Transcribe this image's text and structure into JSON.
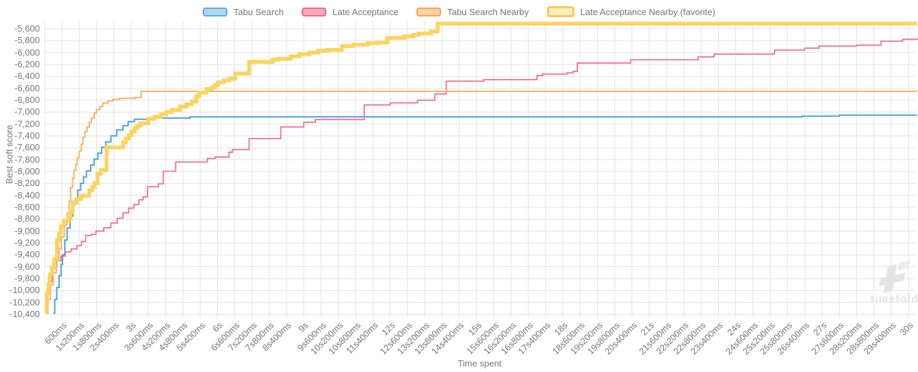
{
  "legend": {
    "items": [
      {
        "label": "Tabu Search",
        "fill": "#aed6f1",
        "border": "#5dade2",
        "thick": false
      },
      {
        "label": "Late Acceptance",
        "fill": "#f8a9be",
        "border": "#f1698c",
        "thick": false
      },
      {
        "label": "Tabu Search Nearby",
        "fill": "#fad2a0",
        "border": "#f5a55c",
        "thick": false
      },
      {
        "label": "Late Acceptance Nearby (favorite)",
        "fill": "#fcedc2",
        "border": "#f8cb4c",
        "thick": true
      }
    ]
  },
  "axes": {
    "y_title": "Best soft score",
    "x_title": "Time spent",
    "y_ticks": [
      "-5,600",
      "-5,800",
      "-6,000",
      "-6,200",
      "-6,400",
      "-6,600",
      "-6,800",
      "-7,000",
      "-7,200",
      "-7,400",
      "-7,600",
      "-7,800",
      "-8,000",
      "-8,200",
      "-8,400",
      "-8,600",
      "-8,800",
      "-9,000",
      "-9,200",
      "-9,400",
      "-9,600",
      "-9,800",
      "-10,000",
      "-10,200",
      "-10,400"
    ],
    "x_ticks": [
      "600ms",
      "1s200ms",
      "1s800ms",
      "2s400ms",
      "3s",
      "3s600ms",
      "4s200ms",
      "4s800ms",
      "5s400ms",
      "6s",
      "6s600ms",
      "7s200ms",
      "7s800ms",
      "8s400ms",
      "9s",
      "9s600ms",
      "10s200ms",
      "10s800ms",
      "11s400ms",
      "12s",
      "12s600ms",
      "13s200ms",
      "13s800ms",
      "14s400ms",
      "15s",
      "15s600ms",
      "16s200ms",
      "16s800ms",
      "17s400ms",
      "18s",
      "18s600ms",
      "19s200ms",
      "19s800ms",
      "20s400ms",
      "21s",
      "21s600ms",
      "22s200ms",
      "22s800ms",
      "23s400ms",
      "24s",
      "24s600ms",
      "25s200ms",
      "25s800ms",
      "26s400ms",
      "27s",
      "27s600ms",
      "28s200ms",
      "28s800ms",
      "29s400ms",
      "30s"
    ]
  },
  "watermark": {
    "text": "timefold"
  },
  "chart_data": {
    "type": "line",
    "subtype": "step-after",
    "title": "",
    "xlabel": "Time spent",
    "ylabel": "Best soft score",
    "x_unit_seconds_per_tick": 0.6,
    "x_range_seconds": [
      0,
      30
    ],
    "y_range": [
      -10400,
      -5600
    ],
    "grid": true,
    "legend_position": "top",
    "series": [
      {
        "name": "Tabu Search",
        "color": "#4aa3df",
        "width": 2,
        "points": [
          [
            0.3,
            -10380
          ],
          [
            0.35,
            -10150
          ],
          [
            0.42,
            -9950
          ],
          [
            0.5,
            -9750
          ],
          [
            0.57,
            -9560
          ],
          [
            0.62,
            -9400
          ],
          [
            0.7,
            -9150
          ],
          [
            0.78,
            -8950
          ],
          [
            0.88,
            -8750
          ],
          [
            0.98,
            -8550
          ],
          [
            1.07,
            -8450
          ],
          [
            1.15,
            -8310
          ],
          [
            1.25,
            -8200
          ],
          [
            1.35,
            -8090
          ],
          [
            1.45,
            -7990
          ],
          [
            1.6,
            -7890
          ],
          [
            1.72,
            -7790
          ],
          [
            1.85,
            -7690
          ],
          [
            1.98,
            -7590
          ],
          [
            2.12,
            -7500
          ],
          [
            2.3,
            -7400
          ],
          [
            2.5,
            -7300
          ],
          [
            2.72,
            -7230
          ],
          [
            2.9,
            -7160
          ],
          [
            3.12,
            -7120
          ],
          [
            3.7,
            -7100
          ],
          [
            5.05,
            -7080
          ],
          [
            26.3,
            -7068
          ],
          [
            27.6,
            -7052
          ],
          [
            30.3,
            -7052
          ]
        ]
      },
      {
        "name": "Late Acceptance",
        "color": "#f1718f",
        "width": 1.8,
        "points": [
          [
            0.05,
            -10380
          ],
          [
            0.1,
            -10000
          ],
          [
            0.17,
            -9850
          ],
          [
            0.27,
            -9620
          ],
          [
            0.42,
            -9500
          ],
          [
            0.57,
            -9420
          ],
          [
            0.72,
            -9350
          ],
          [
            0.92,
            -9300
          ],
          [
            1.12,
            -9245
          ],
          [
            1.28,
            -9175
          ],
          [
            1.42,
            -9075
          ],
          [
            1.62,
            -9055
          ],
          [
            1.78,
            -9000
          ],
          [
            2.05,
            -8945
          ],
          [
            2.3,
            -8865
          ],
          [
            2.52,
            -8785
          ],
          [
            2.72,
            -8695
          ],
          [
            2.92,
            -8615
          ],
          [
            3.1,
            -8555
          ],
          [
            3.27,
            -8475
          ],
          [
            3.42,
            -8425
          ],
          [
            3.57,
            -8255
          ],
          [
            3.95,
            -8205
          ],
          [
            4.12,
            -7995
          ],
          [
            4.55,
            -7840
          ],
          [
            5.65,
            -7780
          ],
          [
            5.92,
            -7755
          ],
          [
            6.4,
            -7675
          ],
          [
            6.52,
            -7630
          ],
          [
            7.1,
            -7445
          ],
          [
            8.2,
            -7250
          ],
          [
            9.0,
            -7170
          ],
          [
            9.4,
            -7125
          ],
          [
            11.1,
            -6880
          ],
          [
            12.0,
            -6845
          ],
          [
            12.95,
            -6800
          ],
          [
            13.55,
            -6695
          ],
          [
            13.95,
            -6480
          ],
          [
            15.25,
            -6455
          ],
          [
            17.1,
            -6385
          ],
          [
            17.3,
            -6360
          ],
          [
            18.15,
            -6340
          ],
          [
            18.35,
            -6315
          ],
          [
            18.5,
            -6175
          ],
          [
            20.35,
            -6120
          ],
          [
            22.7,
            -6072
          ],
          [
            23.25,
            -6025
          ],
          [
            25.35,
            -5958
          ],
          [
            26.4,
            -5925
          ],
          [
            26.9,
            -5890
          ],
          [
            28.2,
            -5875
          ],
          [
            29.05,
            -5808
          ],
          [
            29.8,
            -5775
          ],
          [
            30.3,
            -5772
          ]
        ]
      },
      {
        "name": "Tabu Search Nearby",
        "color": "#f7b267",
        "width": 2,
        "points": [
          [
            0.05,
            -10380
          ],
          [
            0.12,
            -10150
          ],
          [
            0.2,
            -9900
          ],
          [
            0.3,
            -9700
          ],
          [
            0.4,
            -9500
          ],
          [
            0.5,
            -9300
          ],
          [
            0.58,
            -9100
          ],
          [
            0.68,
            -8900
          ],
          [
            0.78,
            -8700
          ],
          [
            0.85,
            -8500
          ],
          [
            0.9,
            -8270
          ],
          [
            0.97,
            -8115
          ],
          [
            1.02,
            -7980
          ],
          [
            1.08,
            -7880
          ],
          [
            1.13,
            -7770
          ],
          [
            1.2,
            -7655
          ],
          [
            1.27,
            -7540
          ],
          [
            1.33,
            -7425
          ],
          [
            1.4,
            -7330
          ],
          [
            1.47,
            -7250
          ],
          [
            1.55,
            -7170
          ],
          [
            1.62,
            -7100
          ],
          [
            1.72,
            -7020
          ],
          [
            1.8,
            -6960
          ],
          [
            1.92,
            -6905
          ],
          [
            2.02,
            -6848
          ],
          [
            2.2,
            -6812
          ],
          [
            2.36,
            -6790
          ],
          [
            2.6,
            -6768
          ],
          [
            3.15,
            -6755
          ],
          [
            3.35,
            -6650
          ],
          [
            30.3,
            -6650
          ]
        ]
      },
      {
        "name": "Late Acceptance Nearby (favorite)",
        "color": "#fad45e",
        "width": 5.5,
        "points": [
          [
            0.02,
            -10350
          ],
          [
            0.08,
            -10050
          ],
          [
            0.13,
            -9900
          ],
          [
            0.18,
            -9730
          ],
          [
            0.25,
            -9615
          ],
          [
            0.33,
            -9475
          ],
          [
            0.43,
            -9155
          ],
          [
            0.5,
            -9040
          ],
          [
            0.56,
            -8920
          ],
          [
            0.66,
            -8830
          ],
          [
            0.82,
            -8790
          ],
          [
            0.9,
            -8690
          ],
          [
            0.97,
            -8520
          ],
          [
            1.12,
            -8460
          ],
          [
            1.27,
            -8405
          ],
          [
            1.55,
            -8310
          ],
          [
            1.65,
            -8255
          ],
          [
            1.73,
            -8195
          ],
          [
            1.84,
            -8035
          ],
          [
            1.95,
            -7975
          ],
          [
            2.15,
            -7595
          ],
          [
            2.72,
            -7505
          ],
          [
            2.82,
            -7445
          ],
          [
            2.92,
            -7390
          ],
          [
            3.02,
            -7330
          ],
          [
            3.12,
            -7270
          ],
          [
            3.22,
            -7228
          ],
          [
            3.32,
            -7190
          ],
          [
            3.6,
            -7112
          ],
          [
            3.82,
            -7078
          ],
          [
            4.02,
            -7042
          ],
          [
            4.22,
            -6998
          ],
          [
            4.42,
            -6962
          ],
          [
            4.7,
            -6905
          ],
          [
            4.92,
            -6868
          ],
          [
            5.12,
            -6822
          ],
          [
            5.27,
            -6732
          ],
          [
            5.37,
            -6672
          ],
          [
            5.62,
            -6612
          ],
          [
            5.82,
            -6580
          ],
          [
            5.92,
            -6545
          ],
          [
            6.02,
            -6500
          ],
          [
            6.22,
            -6465
          ],
          [
            6.42,
            -6440
          ],
          [
            6.62,
            -6350
          ],
          [
            7.1,
            -6155
          ],
          [
            7.92,
            -6118
          ],
          [
            8.12,
            -6105
          ],
          [
            8.55,
            -6062
          ],
          [
            8.85,
            -6027
          ],
          [
            9.2,
            -6002
          ],
          [
            9.5,
            -5968
          ],
          [
            9.82,
            -5955
          ],
          [
            10.32,
            -5890
          ],
          [
            10.72,
            -5865
          ],
          [
            11.22,
            -5842
          ],
          [
            11.55,
            -5830
          ],
          [
            11.9,
            -5752
          ],
          [
            12.5,
            -5727
          ],
          [
            12.8,
            -5702
          ],
          [
            13.0,
            -5680
          ],
          [
            13.42,
            -5645
          ],
          [
            13.65,
            -5512
          ],
          [
            30.3,
            -5512
          ]
        ]
      }
    ]
  }
}
